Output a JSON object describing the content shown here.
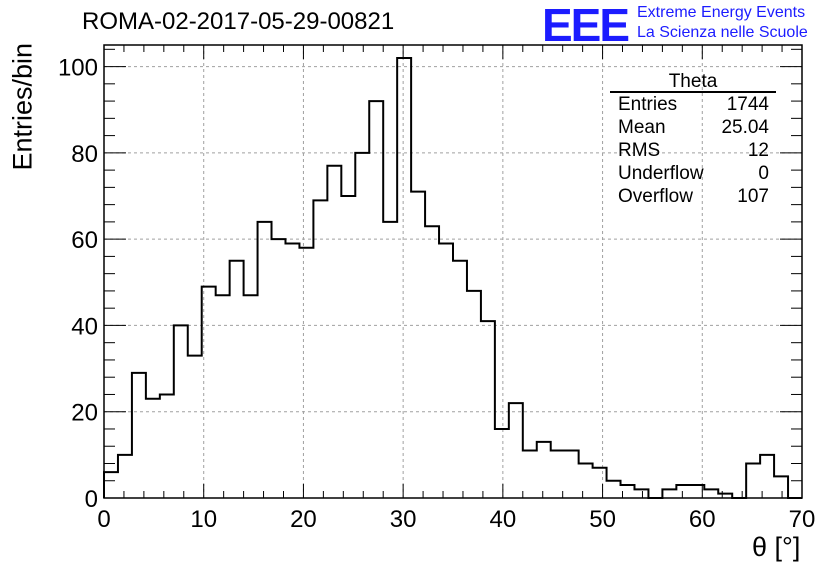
{
  "header": {
    "title": "ROMA-02-2017-05-29-00821",
    "logo_mark": "EEE",
    "logo_line1": "Extreme Energy Events",
    "logo_line2": "La Scienza nelle Scuole"
  },
  "stats_box": {
    "name": "Theta",
    "rows": [
      {
        "label": "Entries",
        "value": "1744"
      },
      {
        "label": "Mean",
        "value": "25.04"
      },
      {
        "label": "RMS",
        "value": "12"
      },
      {
        "label": "Underflow",
        "value": "0"
      },
      {
        "label": "Overflow",
        "value": "107"
      }
    ]
  },
  "colors": {
    "line": "#000000",
    "grid": "#a0a0a0",
    "logo": "#1c1cff"
  },
  "chart_data": {
    "type": "histogram",
    "xlabel": "θ [°]",
    "ylabel": "Entries/bin",
    "xlim": [
      0,
      70
    ],
    "ylim": [
      0,
      105
    ],
    "grid": true,
    "bin_width": 1.4,
    "xticks": [
      0,
      10,
      20,
      30,
      40,
      50,
      60,
      70
    ],
    "yticks": [
      0,
      20,
      40,
      60,
      80,
      100
    ],
    "values": [
      6,
      10,
      29,
      23,
      24,
      40,
      33,
      49,
      47,
      55,
      47,
      64,
      60,
      59,
      58,
      69,
      77,
      70,
      80,
      92,
      64,
      102,
      71,
      63,
      59,
      55,
      48,
      41,
      16,
      22,
      11,
      13,
      11,
      11,
      8,
      7,
      4,
      3,
      2,
      0,
      2,
      3,
      3,
      2,
      1,
      0,
      8,
      10,
      5,
      0
    ]
  }
}
